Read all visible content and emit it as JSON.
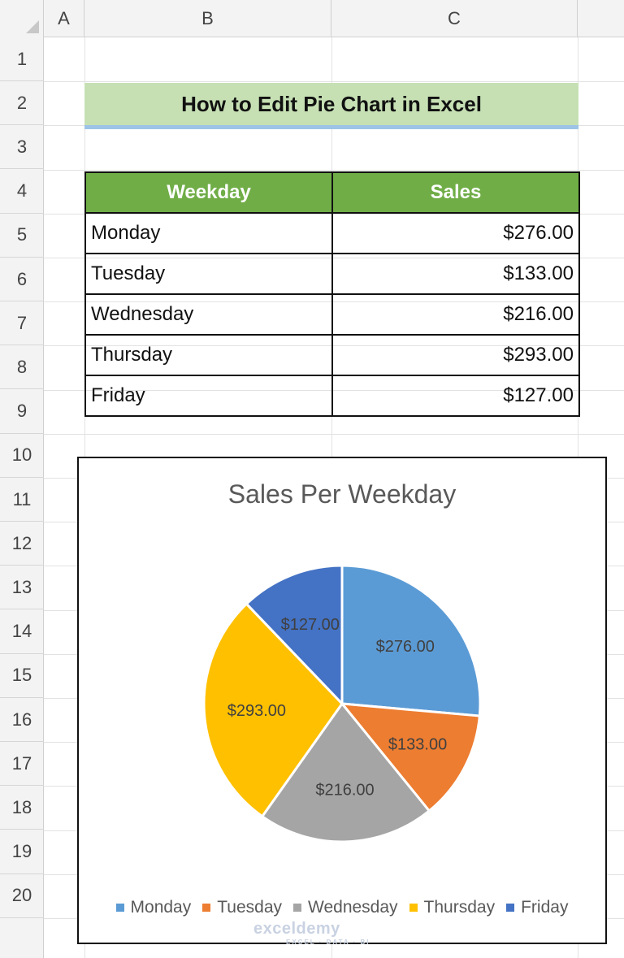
{
  "spreadsheet": {
    "columns": [
      "A",
      "B",
      "C"
    ],
    "rows": [
      "1",
      "2",
      "3",
      "4",
      "5",
      "6",
      "7",
      "8",
      "9",
      "10",
      "11",
      "12",
      "13",
      "14",
      "15",
      "16",
      "17",
      "18",
      "19",
      "20"
    ]
  },
  "title": "How to Edit Pie Chart in Excel",
  "table": {
    "headers": [
      "Weekday",
      "Sales"
    ],
    "rows": [
      {
        "day": "Monday",
        "sales": "$276.00"
      },
      {
        "day": "Tuesday",
        "sales": "$133.00"
      },
      {
        "day": "Wednesday",
        "sales": "$216.00"
      },
      {
        "day": "Thursday",
        "sales": "$293.00"
      },
      {
        "day": "Friday",
        "sales": "$127.00"
      }
    ]
  },
  "chart_data": {
    "type": "pie",
    "title": "Sales Per Weekday",
    "categories": [
      "Monday",
      "Tuesday",
      "Wednesday",
      "Thursday",
      "Friday"
    ],
    "values": [
      276,
      133,
      216,
      293,
      127
    ],
    "data_labels": [
      "$276.00",
      "$133.00",
      "$216.00",
      "$293.00",
      "$127.00"
    ],
    "colors": [
      "#5b9bd5",
      "#ed7d31",
      "#a5a5a5",
      "#ffc000",
      "#4472c4"
    ],
    "legend_position": "bottom"
  },
  "watermark": {
    "name": "exceldemy",
    "tagline": "EXCEL · DATA · BI"
  }
}
